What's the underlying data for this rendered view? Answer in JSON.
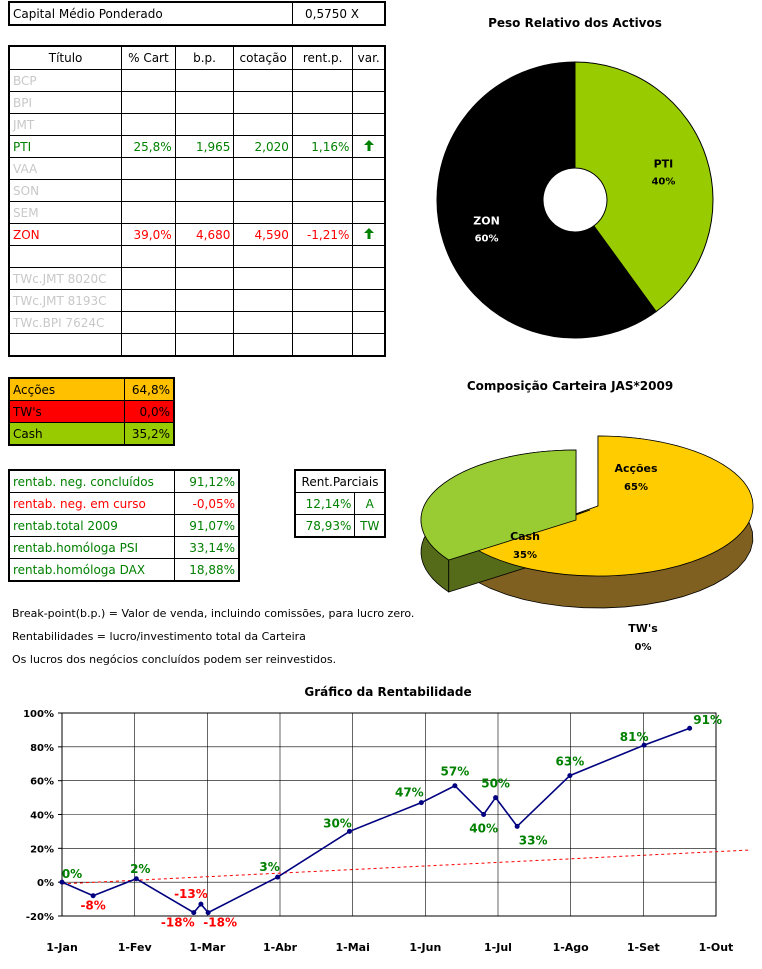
{
  "capital": {
    "label": "Capital Médio Ponderado",
    "value": "0,5750 X"
  },
  "portfolio": {
    "headers": [
      "Título",
      "% Cart",
      "b.p.",
      "cotação",
      "rent.p.",
      "var."
    ],
    "rows": [
      {
        "titulo": "BCP",
        "cart": "",
        "bp": "",
        "cot": "",
        "rent": "",
        "var": "",
        "style": "gray"
      },
      {
        "titulo": "BPI",
        "cart": "",
        "bp": "",
        "cot": "",
        "rent": "",
        "var": "",
        "style": "gray"
      },
      {
        "titulo": "JMT",
        "cart": "",
        "bp": "",
        "cot": "",
        "rent": "",
        "var": "",
        "style": "gray"
      },
      {
        "titulo": "PTI",
        "cart": "25,8%",
        "bp": "1,965",
        "cot": "2,020",
        "rent": "1,16%",
        "var": "up",
        "style": "green"
      },
      {
        "titulo": "VAA",
        "cart": "",
        "bp": "",
        "cot": "",
        "rent": "",
        "var": "",
        "style": "gray"
      },
      {
        "titulo": "SON",
        "cart": "",
        "bp": "",
        "cot": "",
        "rent": "",
        "var": "",
        "style": "gray"
      },
      {
        "titulo": "SEM",
        "cart": "",
        "bp": "",
        "cot": "",
        "rent": "",
        "var": "",
        "style": "gray"
      },
      {
        "titulo": "ZON",
        "cart": "39,0%",
        "bp": "4,680",
        "cot": "4,590",
        "rent": "-1,21%",
        "var": "up",
        "style": "red"
      },
      {
        "titulo": "",
        "cart": "",
        "bp": "",
        "cot": "",
        "rent": "",
        "var": "",
        "style": "gray"
      },
      {
        "titulo": "TWc.JMT 8020C",
        "cart": "",
        "bp": "",
        "cot": "",
        "rent": "",
        "var": "",
        "style": "gray"
      },
      {
        "titulo": "TWc.JMT 8193C",
        "cart": "",
        "bp": "",
        "cot": "",
        "rent": "",
        "var": "",
        "style": "gray"
      },
      {
        "titulo": "TWc.BPI 7624C",
        "cart": "",
        "bp": "",
        "cot": "",
        "rent": "",
        "var": "",
        "style": "gray"
      },
      {
        "titulo": "",
        "cart": "",
        "bp": "",
        "cot": "",
        "rent": "",
        "var": "",
        "style": "gray"
      }
    ]
  },
  "allocation": [
    {
      "label": "Acções",
      "value": "64,8%",
      "color": "#ffc000",
      "text": "#000000"
    },
    {
      "label": "TW's",
      "value": "0,0%",
      "color": "#ff0000",
      "text": "#000000"
    },
    {
      "label": "Cash",
      "value": "35,2%",
      "color": "#99cc00",
      "text": "#000000"
    }
  ],
  "returns": [
    {
      "label": "rentab. neg. concluídos",
      "value": "91,12%",
      "style": "green"
    },
    {
      "label": "rentab. neg. em curso",
      "value": "-0,05%",
      "style": "red"
    },
    {
      "label": "rentab.total 2009",
      "value": "91,07%",
      "style": "green"
    },
    {
      "label": "rentab.homóloga PSI",
      "value": "33,14%",
      "style": "green"
    },
    {
      "label": "rentab.homóloga DAX",
      "value": "18,88%",
      "style": "green"
    }
  ],
  "partial": {
    "header": "Rent.Parciais",
    "rows": [
      {
        "value": "12,14%",
        "code": "A"
      },
      {
        "value": "78,93%",
        "code": "TW"
      }
    ]
  },
  "notes": [
    "Break-point(b.p.) = Valor de venda, incluindo comissões, para lucro zero.",
    "Rentabilidades = lucro/investimento total da Carteira",
    "Os lucros dos negócios concluídos podem ser reinvestidos."
  ],
  "chart_data": [
    {
      "type": "pie",
      "title": "Peso Relativo dos Activos",
      "slices": [
        {
          "label": "PTI",
          "value": 40,
          "display": "40%",
          "color": "#99cc00"
        },
        {
          "label": "ZON",
          "value": 60,
          "display": "60%",
          "color": "#000000"
        }
      ]
    },
    {
      "type": "pie",
      "title": "Composição Carteira JAS*2009",
      "slices": [
        {
          "label": "Acções",
          "value": 65,
          "display": "65%",
          "color": "#ffcc00"
        },
        {
          "label": "TW's",
          "value": 0,
          "display": "0%",
          "color": "#cc0000"
        },
        {
          "label": "Cash",
          "value": 35,
          "display": "35%",
          "color": "#99cc33"
        }
      ]
    },
    {
      "type": "line",
      "title": "Gráfico da Rentabilidade",
      "xlabel": "",
      "ylabel": "",
      "x_ticks": [
        "1-Jan",
        "1-Fev",
        "1-Mar",
        "1-Abr",
        "1-Mai",
        "1-Jun",
        "1-Jul",
        "1-Ago",
        "1-Set",
        "1-Out"
      ],
      "y_ticks": [
        "100%",
        "80%",
        "60%",
        "40%",
        "20%",
        "0%",
        "-20%"
      ],
      "ylim": [
        -20,
        100
      ],
      "grid": true,
      "series": [
        {
          "color": "#000080",
          "points": [
            {
              "x": "2009-01-01",
              "y": 0,
              "label": "0%",
              "labelColor": "#008000"
            },
            {
              "x": "2009-01-14",
              "y": -8,
              "label": "-8%",
              "labelColor": "#ff0000"
            },
            {
              "x": "2009-02-01",
              "y": 2,
              "label": "2%",
              "labelColor": "#008000"
            },
            {
              "x": "2009-02-25",
              "y": -18,
              "label": "-18%",
              "labelColor": "#ff0000"
            },
            {
              "x": "2009-02-28",
              "y": -13,
              "label": "-13%",
              "labelColor": "#ff0000"
            },
            {
              "x": "2009-03-03",
              "y": -18,
              "label": "-18%",
              "labelColor": "#ff0000"
            },
            {
              "x": "2009-04-01",
              "y": 3,
              "label": "3%",
              "labelColor": "#008000"
            },
            {
              "x": "2009-05-01",
              "y": 30,
              "label": "30%",
              "labelColor": "#008000"
            },
            {
              "x": "2009-05-31",
              "y": 47,
              "label": "47%",
              "labelColor": "#008000"
            },
            {
              "x": "2009-06-14",
              "y": 57,
              "label": "57%",
              "labelColor": "#008000"
            },
            {
              "x": "2009-06-26",
              "y": 40,
              "label": "40%",
              "labelColor": "#008000"
            },
            {
              "x": "2009-07-01",
              "y": 50,
              "label": "50%",
              "labelColor": "#008000"
            },
            {
              "x": "2009-07-10",
              "y": 33,
              "label": "33%",
              "labelColor": "#008000"
            },
            {
              "x": "2009-08-01",
              "y": 63,
              "label": "63%",
              "labelColor": "#008000"
            },
            {
              "x": "2009-09-01",
              "y": 81,
              "label": "81%",
              "labelColor": "#008000"
            },
            {
              "x": "2009-09-20",
              "y": 91,
              "label": "91%",
              "labelColor": "#008000"
            }
          ]
        },
        {
          "color": "#ff0000",
          "style": "dashed",
          "points": [
            {
              "x": "2009-01-01",
              "y": -1
            },
            {
              "x": "2009-10-15",
              "y": 19
            }
          ]
        }
      ]
    }
  ]
}
